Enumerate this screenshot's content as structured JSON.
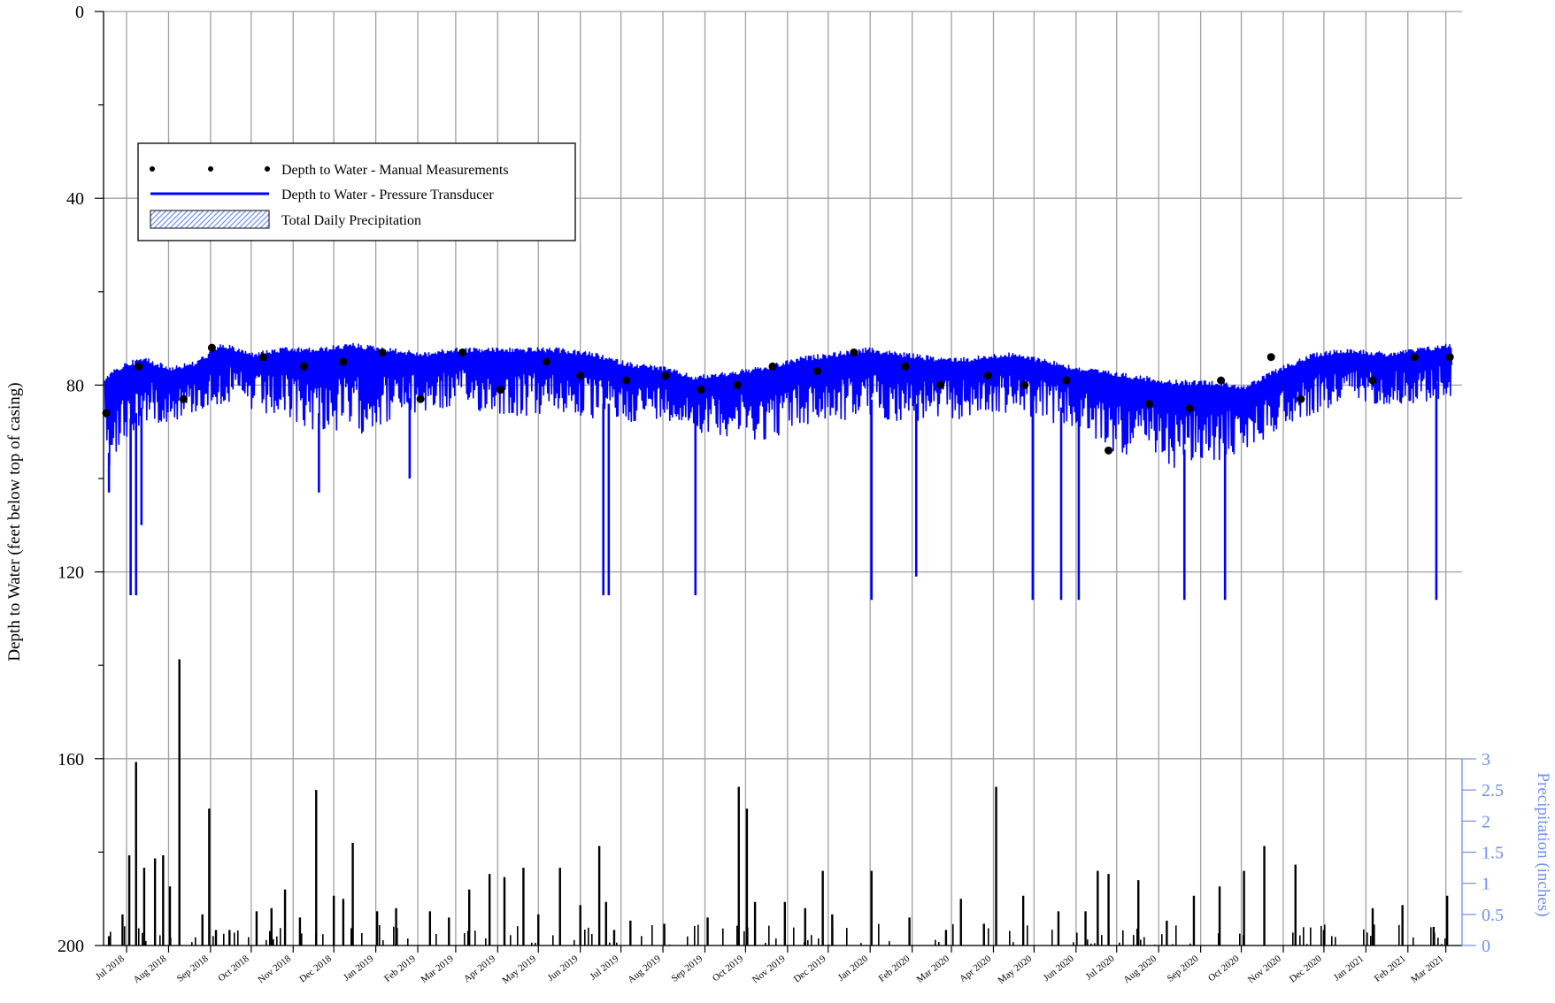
{
  "chart_data": {
    "type": "line",
    "ylabel": "Depth to Water (feet below top of casing)",
    "y_reversed": true,
    "ylim": [
      0,
      200
    ],
    "yticks": [
      "0",
      "40",
      "80",
      "120",
      "160",
      "200"
    ],
    "y2label": "Precipitation (inches)",
    "y2lim": [
      0,
      3
    ],
    "y2ticks": [
      "0",
      "0.5",
      "1",
      "1.5",
      "2",
      "2.5",
      "3"
    ],
    "grid": true,
    "legend_position": "upper-left",
    "x_tick_labels": [
      "Jul 2018",
      "Aug 2018",
      "Sep 2018",
      "Oct 2018",
      "Nov 2018",
      "Dec 2018",
      "Jan 2019",
      "Feb 2019",
      "Mar 2019",
      "Apr 2019",
      "May 2019",
      "Jun 2019",
      "Jul 2019",
      "Aug 2019",
      "Sep 2019",
      "Oct 2019",
      "Nov 2019",
      "Dec 2019",
      "Jan 2020",
      "Feb 2020",
      "Mar 2020",
      "Apr 2020",
      "May 2020",
      "Jun 2020",
      "Jul 2020",
      "Aug 2020",
      "Sep 2020",
      "Oct 2020",
      "Nov 2020",
      "Dec 2020",
      "Jan 2021",
      "Feb 2021",
      "Mar 2021"
    ],
    "series": [
      {
        "name": "Depth to Water - Manual Measurements",
        "kind": "points",
        "color": "#000000",
        "x": [
          "2018-06-16",
          "2018-07-10",
          "2018-08-12",
          "2018-09-02",
          "2018-10-10",
          "2018-11-09",
          "2018-12-08",
          "2019-01-06",
          "2019-02-03",
          "2019-03-06",
          "2019-04-03",
          "2019-05-07",
          "2019-06-01",
          "2019-07-05",
          "2019-08-03",
          "2019-08-29",
          "2019-09-25",
          "2019-10-21",
          "2019-11-23",
          "2019-12-20",
          "2020-01-27",
          "2020-02-22",
          "2020-03-28",
          "2020-04-24",
          "2020-05-25",
          "2020-06-25",
          "2020-07-25",
          "2020-08-24",
          "2020-09-16",
          "2020-10-23",
          "2020-11-14",
          "2021-01-06",
          "2021-02-06",
          "2021-03-04"
        ],
        "y": [
          86,
          76,
          83,
          72,
          74,
          76,
          75,
          73,
          83,
          73,
          81,
          75,
          78,
          79,
          78,
          81,
          80,
          76,
          77,
          73,
          76,
          80,
          78,
          80,
          79,
          94,
          84,
          85,
          79,
          74,
          83,
          79,
          74,
          74
        ]
      },
      {
        "name": "Depth to Water - Pressure Transducer",
        "kind": "line",
        "color": "#0000ff",
        "x": [
          "2018-06-15",
          "2018-07-01",
          "2018-07-15",
          "2018-08-01",
          "2018-08-20",
          "2018-09-10",
          "2018-10-01",
          "2018-10-25",
          "2018-11-20",
          "2018-12-15",
          "2019-01-10",
          "2019-02-05",
          "2019-03-01",
          "2019-03-25",
          "2019-04-20",
          "2019-05-15",
          "2019-06-10",
          "2019-07-05",
          "2019-08-01",
          "2019-08-25",
          "2019-09-20",
          "2019-10-15",
          "2019-11-10",
          "2019-12-05",
          "2019-12-30",
          "2020-01-25",
          "2020-02-20",
          "2020-03-15",
          "2020-04-10",
          "2020-05-05",
          "2020-06-01",
          "2020-06-25",
          "2020-07-20",
          "2020-08-15",
          "2020-09-10",
          "2020-10-05",
          "2020-10-30",
          "2020-11-25",
          "2020-12-20",
          "2021-01-15",
          "2021-02-10",
          "2021-03-05"
        ],
        "y_high": [
          78,
          75,
          74,
          76,
          75,
          71,
          73,
          72,
          72,
          71,
          72,
          73,
          72,
          72,
          72,
          72,
          73,
          75,
          76,
          78,
          77,
          76,
          74,
          73,
          72,
          73,
          74,
          74,
          73,
          74,
          76,
          77,
          78,
          79,
          79,
          80,
          76,
          73,
          72,
          73,
          72,
          71
        ],
        "y_low": [
          100,
          92,
          88,
          88,
          86,
          84,
          86,
          88,
          90,
          91,
          88,
          86,
          85,
          86,
          87,
          86,
          88,
          88,
          87,
          90,
          91,
          92,
          89,
          88,
          87,
          88,
          88,
          87,
          86,
          87,
          90,
          94,
          96,
          98,
          97,
          94,
          89,
          86,
          84,
          84,
          84,
          83
        ],
        "spikes": [
          {
            "x": "2018-06-18",
            "y": 103
          },
          {
            "x": "2018-07-04",
            "y": 125
          },
          {
            "x": "2018-07-08",
            "y": 125
          },
          {
            "x": "2018-07-12",
            "y": 110
          },
          {
            "x": "2018-11-20",
            "y": 103
          },
          {
            "x": "2019-01-26",
            "y": 100
          },
          {
            "x": "2019-06-18",
            "y": 125
          },
          {
            "x": "2019-06-22",
            "y": 125
          },
          {
            "x": "2019-08-25",
            "y": 125
          },
          {
            "x": "2020-01-02",
            "y": 126
          },
          {
            "x": "2020-02-04",
            "y": 121
          },
          {
            "x": "2020-04-30",
            "y": 126
          },
          {
            "x": "2020-05-21",
            "y": 126
          },
          {
            "x": "2020-06-03",
            "y": 126
          },
          {
            "x": "2020-08-20",
            "y": 126
          },
          {
            "x": "2020-09-19",
            "y": 126
          },
          {
            "x": "2021-02-22",
            "y": 126
          }
        ]
      },
      {
        "name": "Total Daily Precipitation",
        "kind": "bar",
        "axis": "precipitation",
        "color": "#000000",
        "x": [
          "2018-06-18",
          "2018-06-28",
          "2018-07-03",
          "2018-07-08",
          "2018-07-14",
          "2018-07-22",
          "2018-07-28",
          "2018-08-02",
          "2018-08-09",
          "2018-08-26",
          "2018-08-31",
          "2018-09-05",
          "2018-09-15",
          "2018-10-05",
          "2018-10-16",
          "2018-10-26",
          "2018-11-06",
          "2018-11-18",
          "2018-12-01",
          "2018-12-08",
          "2018-12-15",
          "2019-01-02",
          "2019-01-16",
          "2019-02-10",
          "2019-02-24",
          "2019-03-11",
          "2019-03-26",
          "2019-04-06",
          "2019-04-20",
          "2019-05-01",
          "2019-05-17",
          "2019-06-01",
          "2019-06-15",
          "2019-06-20",
          "2019-06-26",
          "2019-07-08",
          "2019-08-02",
          "2019-09-03",
          "2019-09-26",
          "2019-10-02",
          "2019-10-08",
          "2019-10-30",
          "2019-11-14",
          "2019-11-27",
          "2019-12-04",
          "2020-01-02",
          "2020-01-30",
          "2020-02-26",
          "2020-03-08",
          "2020-03-25",
          "2020-04-03",
          "2020-04-23",
          "2020-05-19",
          "2020-06-08",
          "2020-06-17",
          "2020-06-25",
          "2020-07-17",
          "2020-08-07",
          "2020-08-27",
          "2020-09-15",
          "2020-10-03",
          "2020-10-18",
          "2020-11-10",
          "2020-12-01",
          "2021-01-06",
          "2021-01-28",
          "2021-02-20",
          "2021-03-02"
        ],
        "values": [
          0.15,
          0.5,
          1.45,
          2.95,
          1.25,
          1.4,
          1.45,
          0.95,
          4.6,
          0.5,
          2.2,
          0.25,
          0.25,
          0.55,
          0.6,
          0.9,
          0.45,
          2.5,
          0.8,
          0.75,
          1.65,
          0.55,
          0.6,
          0.55,
          0.45,
          0.9,
          1.15,
          1.1,
          1.25,
          0.5,
          1.25,
          0.65,
          1.6,
          0.7,
          0.25,
          0.4,
          0.35,
          0.45,
          2.55,
          2.2,
          0.7,
          0.7,
          0.6,
          1.2,
          0.5,
          1.2,
          0.45,
          0.25,
          0.75,
          0.35,
          2.55,
          0.8,
          0.55,
          0.55,
          1.2,
          1.15,
          1.05,
          0.4,
          0.8,
          0.95,
          1.2,
          1.6,
          1.3,
          0.25,
          0.6,
          0.65,
          0.3,
          0.8
        ]
      }
    ]
  },
  "legend": {
    "items": [
      {
        "label": "Depth to Water - Manual Measurements",
        "kind": "dots"
      },
      {
        "label": "Depth to Water - Pressure Transducer",
        "kind": "line"
      },
      {
        "label": "Total Daily Precipitation",
        "kind": "hatched-box"
      }
    ]
  }
}
